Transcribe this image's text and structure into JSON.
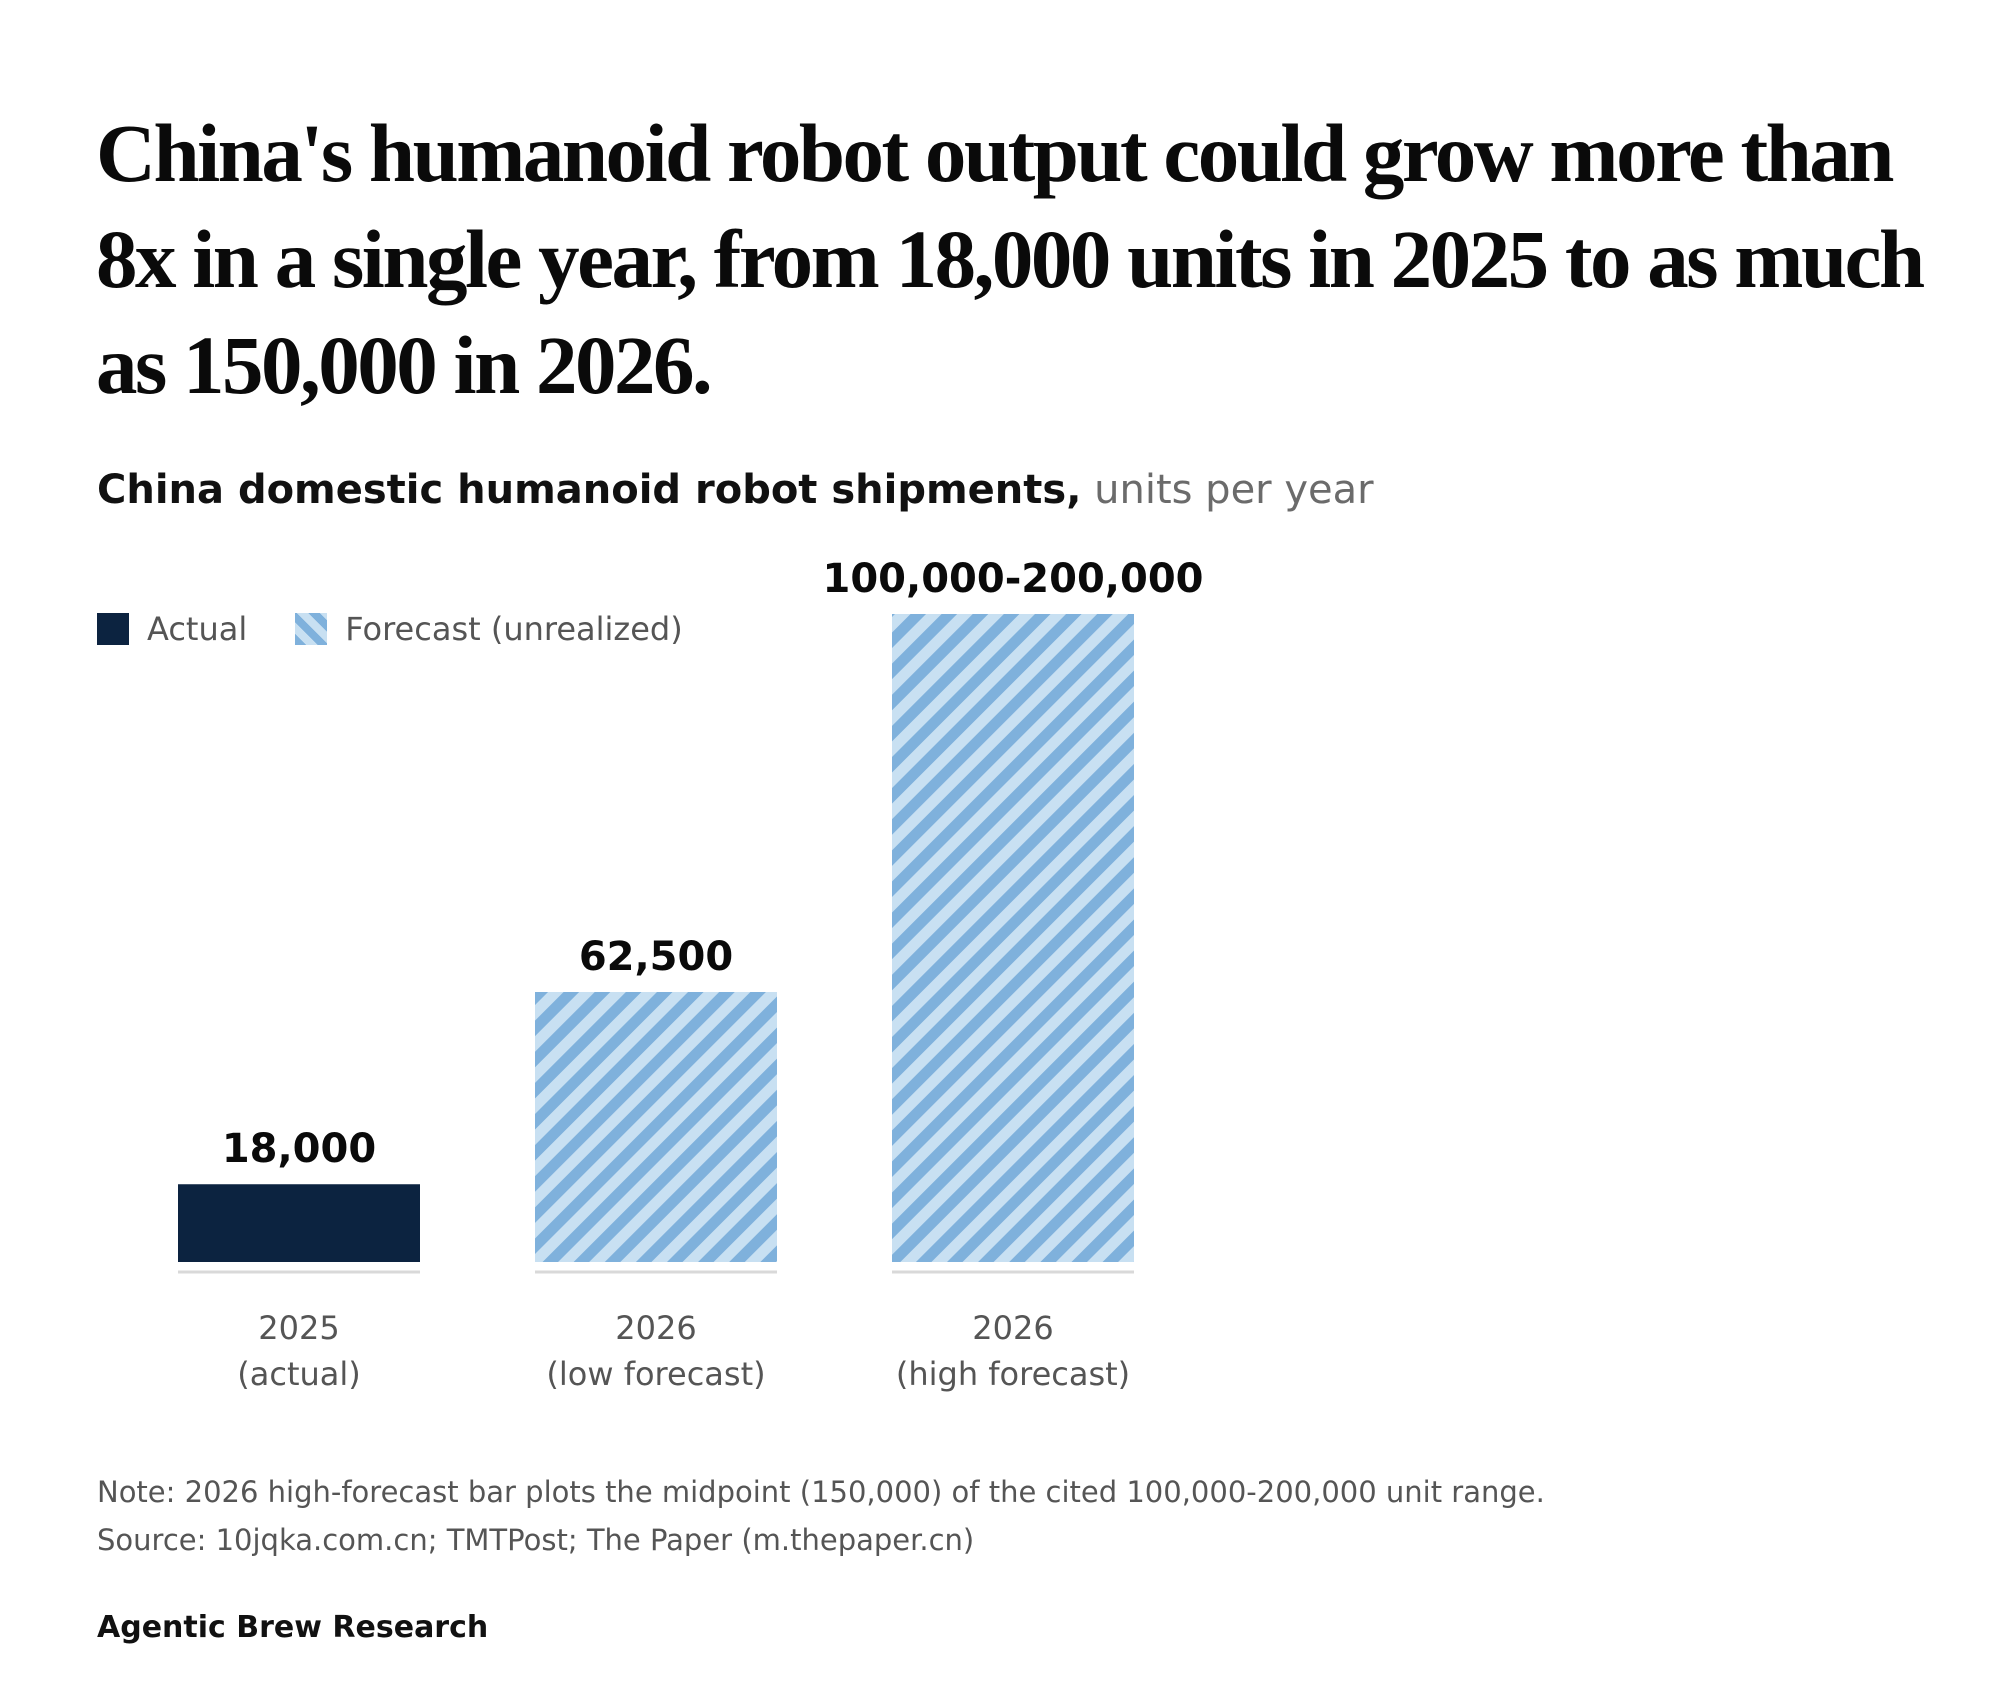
{
  "headline": "China's humanoid robot output could grow more than 8x in a single year, from 18,000 units in 2025 to as much as 150,000 in 2026.",
  "subtitle": {
    "main": "China domestic humanoid robot shipments,",
    "unit": "units per year"
  },
  "legend": {
    "actual": "Actual",
    "forecast": "Forecast (unrealized)"
  },
  "colors": {
    "actual": "#0c2340",
    "forecast_stripe_dark": "#7fb1dc",
    "forecast_stripe_light": "#c8e0f2",
    "baseline": "#d9d9d9"
  },
  "chart_data": {
    "type": "bar",
    "title": "China domestic humanoid robot shipments,",
    "ylabel": "units per year",
    "xlabel": "",
    "categories": [
      [
        "2025",
        "(actual)"
      ],
      [
        "2026",
        "(low forecast)"
      ],
      [
        "2026",
        "(high forecast)"
      ]
    ],
    "values": [
      18000,
      62500,
      150000
    ],
    "value_labels": [
      "18,000",
      "62,500",
      "100,000-200,000"
    ],
    "kinds": [
      "actual",
      "forecast",
      "forecast"
    ],
    "ylim": [
      0,
      150000
    ],
    "grid": false,
    "legend_position": "top-left"
  },
  "footer": {
    "note": "Note: 2026 high-forecast bar plots the midpoint (150,000) of the cited 100,000-200,000 unit range.",
    "source": "Source: 10jqka.com.cn; TMTPost; The Paper (m.thepaper.cn)",
    "credit": "Agentic Brew Research"
  }
}
